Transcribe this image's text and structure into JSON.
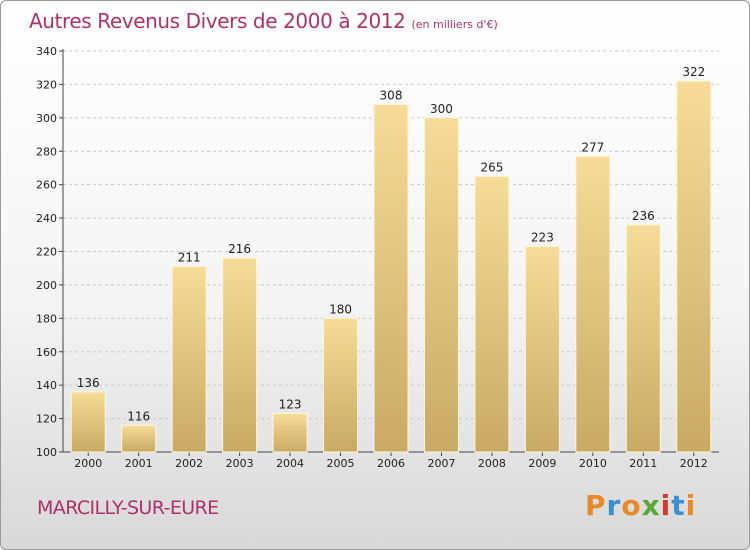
{
  "header": {
    "title": "Autres Revenus Divers de 2000 à 2012",
    "subtitle": "(en milliers d'€)"
  },
  "footer": {
    "place": "MARCILLY-SUR-EURE",
    "logo_text": "Proxiti",
    "logo_colors": [
      "#e8892a",
      "#3a8fd0",
      "#e8892a",
      "#5aa83a",
      "#d13a2a",
      "#3a8fd0",
      "#e8892a"
    ]
  },
  "colors": {
    "bar_light": "#f6dc98",
    "bar_dark": "#c8aa64",
    "title": "#b0306a",
    "grid": "#c8c8c8"
  },
  "chart_data": {
    "type": "bar",
    "title": "Autres Revenus Divers de 2000 à 2012",
    "subtitle": "(en milliers d'€)",
    "categories": [
      "2000",
      "2001",
      "2002",
      "2003",
      "2004",
      "2005",
      "2006",
      "2007",
      "2008",
      "2009",
      "2010",
      "2011",
      "2012"
    ],
    "values": [
      136,
      116,
      211,
      216,
      123,
      180,
      308,
      300,
      265,
      223,
      277,
      236,
      322
    ],
    "ylim": [
      100,
      340
    ],
    "yticks": [
      100,
      120,
      140,
      160,
      180,
      200,
      220,
      240,
      260,
      280,
      300,
      320,
      340
    ],
    "grid": "horizontal-dashed"
  }
}
